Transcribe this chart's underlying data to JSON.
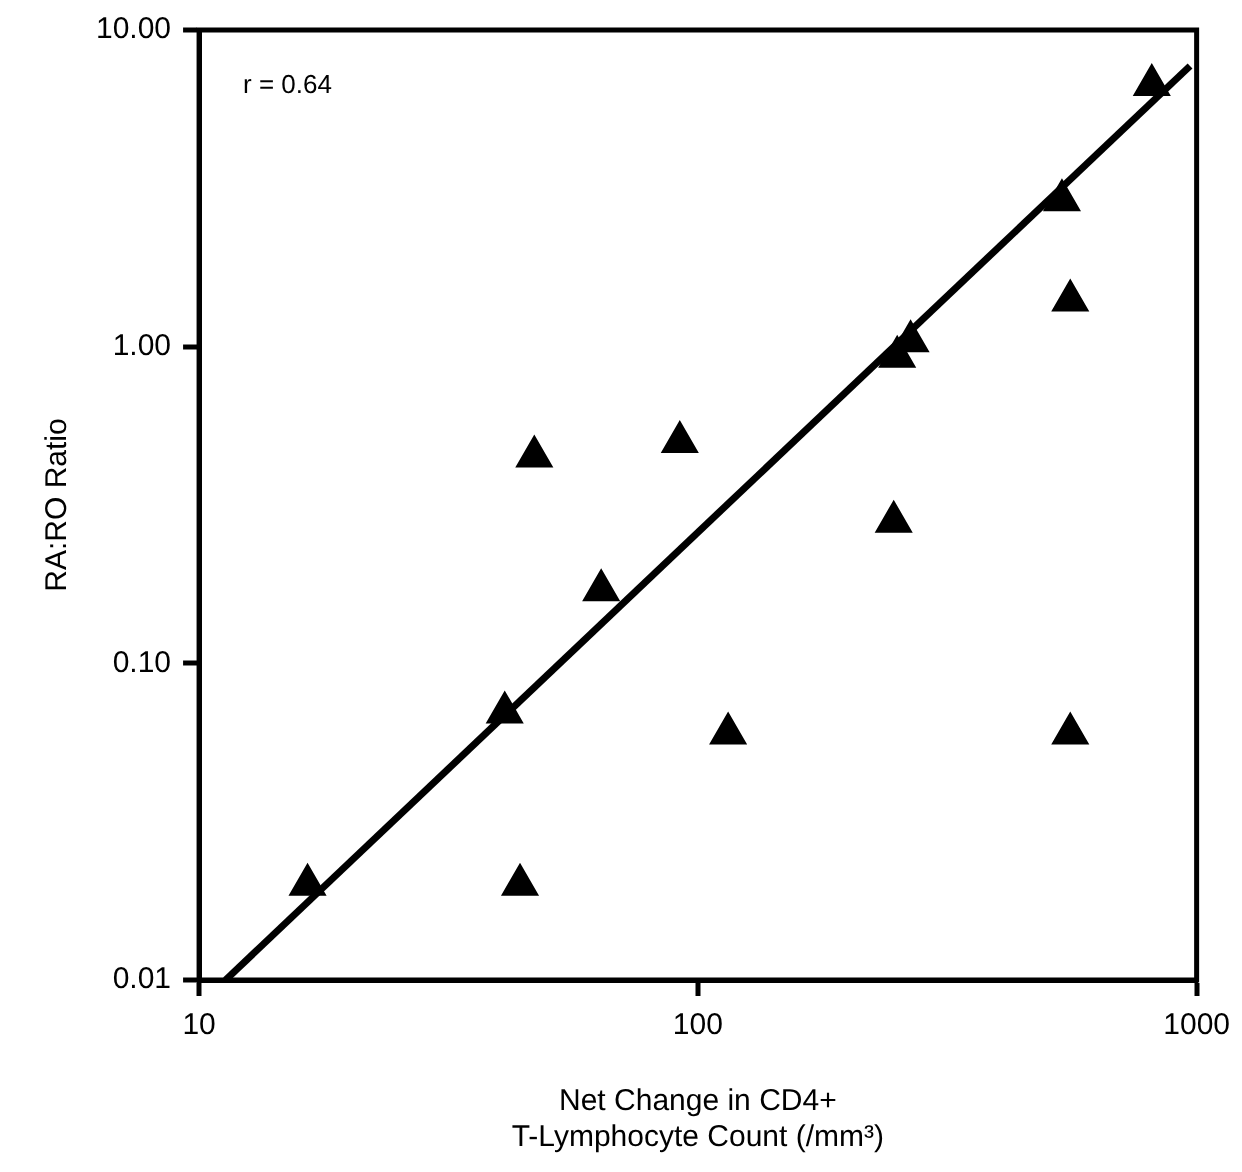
{
  "chart_data": {
    "type": "scatter",
    "xlabel": "Net Change in CD4+\nT-Lymphocyte Count (/mm³)",
    "ylabel": "RA:RO Ratio",
    "annotations": [
      "r = 0.64"
    ],
    "log": "xy",
    "xlim": [
      10,
      1000
    ],
    "xticks": [
      10,
      100,
      1000
    ],
    "ylim": [
      0.01,
      10
    ],
    "yticks": [
      {
        "value": 0.01,
        "label": "0.01"
      },
      {
        "value": 0.1,
        "label": "0.10"
      },
      {
        "value": 1,
        "label": "1.00"
      },
      {
        "value": 10,
        "label": "10.00"
      }
    ],
    "grid": false,
    "legend": false,
    "marker": "triangle",
    "series": [
      {
        "type": "scatter",
        "color": "#000000",
        "x": [
          16.5,
          44,
          41,
          47,
          64,
          92,
          115,
          247,
          251,
          267,
          537,
          558,
          558,
          813
        ],
        "values": [
          0.02,
          0.02,
          0.07,
          0.45,
          0.17,
          0.5,
          0.06,
          0.28,
          0.93,
          1.04,
          2.9,
          1.4,
          0.06,
          6.7
        ]
      },
      {
        "type": "line",
        "color": "#000000",
        "marker": "none",
        "line_style": "solid",
        "x": [
          11.3,
          970
        ],
        "values": [
          0.01,
          7.7
        ]
      }
    ]
  }
}
